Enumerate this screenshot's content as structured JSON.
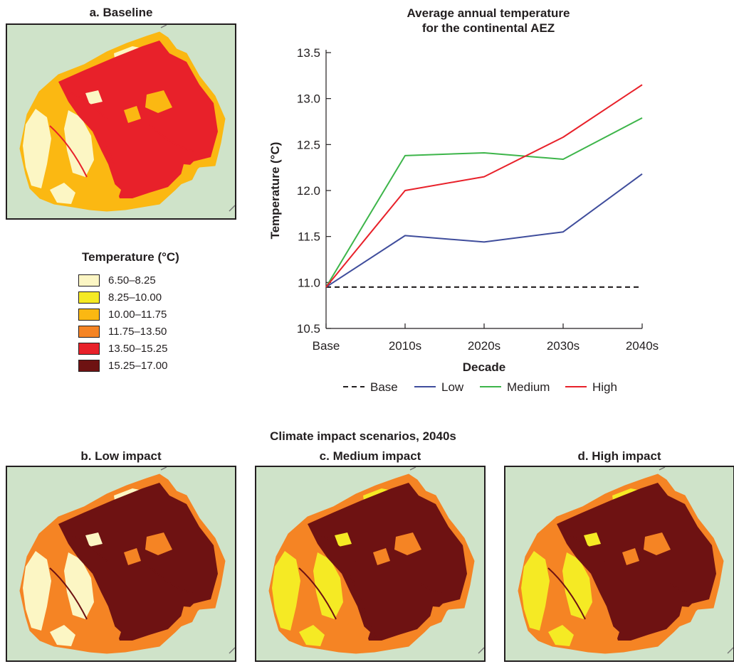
{
  "map_titles": {
    "baseline": "a. Baseline",
    "low": "b. Low impact",
    "medium": "c. Medium impact",
    "high": "d. High impact"
  },
  "scenarios_heading": "Climate impact scenarios, 2040s",
  "legend": {
    "title": "Temperature (°C)",
    "items": [
      {
        "label": "6.50–8.25",
        "color": "#fcf6c4"
      },
      {
        "label": "8.25–10.00",
        "color": "#f5ea24"
      },
      {
        "label": "10.00–11.75",
        "color": "#fbb812"
      },
      {
        "label": "11.75–13.50",
        "color": "#f58424"
      },
      {
        "label": "13.50–15.25",
        "color": "#e8212a"
      },
      {
        "label": "15.25–17.00",
        "color": "#6e1212"
      }
    ]
  },
  "map_colors": {
    "background": "#cfe3c9",
    "baseline": [
      "#fbb812",
      "#e8212a",
      "#fcf6c4"
    ],
    "low": [
      "#f58424",
      "#6e1212",
      "#fcf6c4"
    ],
    "medium": [
      "#f58424",
      "#6e1212",
      "#f5ea24"
    ],
    "high": [
      "#f58424",
      "#6e1212",
      "#f5ea24"
    ]
  },
  "chart_data": {
    "type": "line",
    "title": "Average annual temperature\nfor the continental AEZ",
    "xlabel": "Decade",
    "ylabel": "Temperature (°C)",
    "categories": [
      "Base",
      "2010s",
      "2020s",
      "2030s",
      "2040s"
    ],
    "ylim": [
      10.5,
      13.5
    ],
    "yticks": [
      "10.5",
      "11.0",
      "11.5",
      "12.0",
      "12.5",
      "13.0",
      "13.5"
    ],
    "grid": false,
    "legend_position": "bottom",
    "series": [
      {
        "name": "Base",
        "values": [
          10.95,
          10.95,
          10.95,
          10.95,
          10.95
        ],
        "color": "#231f20",
        "dashed": true
      },
      {
        "name": "Low",
        "values": [
          10.95,
          11.51,
          11.44,
          11.55,
          12.18
        ],
        "color": "#3f4d9c",
        "dashed": false
      },
      {
        "name": "Medium",
        "values": [
          10.95,
          12.38,
          12.41,
          12.34,
          12.79
        ],
        "color": "#3db54a",
        "dashed": false
      },
      {
        "name": "High",
        "values": [
          10.95,
          12.0,
          12.15,
          12.58,
          13.15
        ],
        "color": "#e8212a",
        "dashed": false
      }
    ]
  }
}
